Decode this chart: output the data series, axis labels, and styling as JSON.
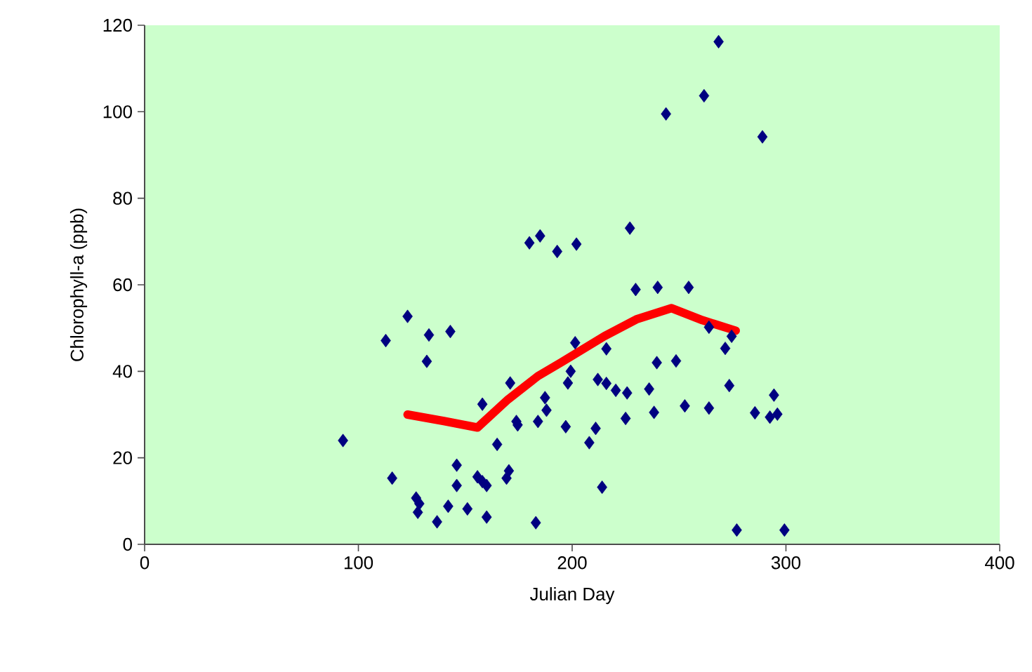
{
  "chart_data": {
    "type": "scatter",
    "xlabel": "Julian Day",
    "ylabel": "Chlorophyll-a (ppb)",
    "xlim": [
      0,
      400
    ],
    "ylim": [
      0,
      120
    ],
    "xticks": [
      0,
      100,
      200,
      300,
      400
    ],
    "yticks": [
      0,
      20,
      40,
      60,
      80,
      100,
      120
    ],
    "grid": false,
    "marker": "diamond",
    "series": [
      {
        "color": "#000080",
        "x": [
          92.8,
          115.8,
          112.8,
          123,
          133,
          132,
          143,
          127,
          128.5,
          127.8,
          136.8,
          142,
          146,
          146,
          151,
          155.7,
          158,
          160,
          160,
          158,
          164.9,
          169.3,
          170.4,
          171,
          173.9,
          174.5,
          183,
          184,
          187.3,
          188,
          180,
          185,
          193,
          202,
          197,
          198,
          199.3,
          201.4,
          208,
          211,
          212,
          216,
          216,
          214,
          220.4,
          225.7,
          225,
          236,
          238.3,
          239.6,
          229.7,
          227,
          240,
          268.5,
          261.7,
          243.9,
          289,
          254.5,
          264,
          274.6,
          271.6,
          248.6,
          273.5,
          252.7,
          264,
          285.5,
          292.5,
          296,
          294.4,
          277,
          299.3
        ],
        "values": [
          24.0,
          15.3,
          47.1,
          52.7,
          48.4,
          42.3,
          49.2,
          10.7,
          9.4,
          7.4,
          5.2,
          8.8,
          13.6,
          18.3,
          8.2,
          15.6,
          14.5,
          13.6,
          6.3,
          32.4,
          23.1,
          15.3,
          17.0,
          37.3,
          28.4,
          27.6,
          5.0,
          28.4,
          33.9,
          31.0,
          69.7,
          71.3,
          67.7,
          69.4,
          27.2,
          37.3,
          40.0,
          46.6,
          23.5,
          26.8,
          38.1,
          37.2,
          45.2,
          13.2,
          35.6,
          35.0,
          29.1,
          35.9,
          30.5,
          42.0,
          58.9,
          73.1,
          59.4,
          116.2,
          103.7,
          99.5,
          94.2,
          59.4,
          50.2,
          48.1,
          45.3,
          42.4,
          36.7,
          32.0,
          31.5,
          30.4,
          29.4,
          30.1,
          34.5,
          3.3,
          3.3
        ]
      },
      {
        "type": "line",
        "color": "#ff0000",
        "marker": "none",
        "line_style": "solid",
        "x": [
          123,
          140,
          155.7,
          170,
          184,
          195,
          215,
          230,
          246.5,
          261,
          276.5
        ],
        "values": [
          30.0,
          28.5,
          27.0,
          33.5,
          38.9,
          42.1,
          48.1,
          52.0,
          54.6,
          51.8,
          49.4
        ]
      }
    ]
  }
}
